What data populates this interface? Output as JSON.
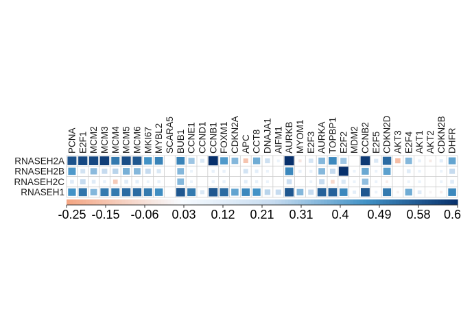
{
  "chart_data": {
    "type": "heatmap",
    "title": "",
    "xlabel": "",
    "ylabel": "",
    "columns": [
      "PCNA",
      "E2F1",
      "MCM2",
      "MCM3",
      "MCM4",
      "MCM5",
      "MCM6",
      "MKI67",
      "MYBL2",
      "SCARA5",
      "BUB1",
      "CCNE1",
      "CCND1",
      "CCNB1",
      "FOXM1",
      "CDKN2A",
      "APC",
      "CCT8",
      "DNAJA1",
      "AIFM1",
      "AURKB",
      "MYOM1",
      "E2F3",
      "AURKA",
      "TOPBP1",
      "E2F2",
      "MDM2",
      "CCNB2",
      "E2F5",
      "CDKN2D",
      "AKT3",
      "E2F4",
      "AKT1",
      "AKT2",
      "CDKN2B",
      "DHFR"
    ],
    "rows": [
      "RNASEH2A",
      "RNASEH2B",
      "RNASEH2C",
      "RNASEH1"
    ],
    "values": [
      [
        0.53,
        0.55,
        0.55,
        0.57,
        0.45,
        0.54,
        0.52,
        0.4,
        0.43,
        0.0,
        0.43,
        0.26,
        0.12,
        0.6,
        0.38,
        0.3,
        -0.16,
        0.33,
        0.17,
        0.05,
        0.6,
        -0.06,
        0.14,
        0.3,
        0.42,
        0.26,
        0.0,
        0.58,
        0.12,
        0.48,
        -0.18,
        0.3,
        0.06,
        -0.05,
        0.08,
        0.35
      ],
      [
        0.38,
        0.15,
        0.29,
        0.2,
        0.22,
        0.32,
        0.3,
        0.2,
        0.12,
        0.0,
        0.3,
        0.05,
        0.0,
        0.06,
        0.06,
        0.0,
        0.15,
        0.08,
        0.05,
        0.0,
        0.42,
        0.06,
        0.06,
        0.3,
        0.2,
        0.6,
        0.05,
        0.34,
        0.05,
        0.36,
        0.0,
        0.1,
        0.05,
        0.0,
        0.05,
        0.2
      ],
      [
        0.1,
        0.2,
        0.1,
        0.06,
        -0.14,
        0.1,
        0.08,
        0.05,
        0.06,
        0.0,
        0.3,
        0.05,
        0.0,
        0.06,
        0.06,
        0.0,
        0.08,
        0.06,
        0.05,
        0.0,
        0.18,
        0.0,
        0.05,
        0.2,
        -0.1,
        0.12,
        0.05,
        0.28,
        0.05,
        -0.04,
        0.0,
        0.05,
        0.05,
        0.0,
        0.05,
        0.1
      ],
      [
        0.4,
        0.46,
        0.3,
        0.45,
        0.45,
        0.48,
        0.48,
        0.45,
        0.41,
        0.0,
        0.52,
        0.45,
        0.12,
        0.52,
        0.48,
        0.35,
        0.42,
        0.4,
        0.22,
        0.2,
        0.52,
        0.3,
        0.2,
        0.5,
        0.5,
        0.42,
        0.08,
        0.52,
        0.05,
        0.45,
        -0.03,
        0.33,
        0.1,
        -0.02,
        -0.04,
        0.42
      ]
    ],
    "color_scale": {
      "min": -0.25,
      "max": 0.6,
      "stops": [
        {
          "value": -0.25,
          "color": "#f4a582"
        },
        {
          "value": 0.0,
          "color": "#f7fbff"
        },
        {
          "value": 0.2,
          "color": "#c6dbef"
        },
        {
          "value": 0.4,
          "color": "#4292c6"
        },
        {
          "value": 0.6,
          "color": "#08306b"
        }
      ],
      "tick_labels": [
        "-0.25",
        "-0.15",
        "-0.06",
        "0.03",
        "0.12",
        "0.21",
        "0.31",
        "0.4",
        "0.49",
        "0.58",
        "0.6"
      ]
    },
    "grid": true,
    "legend": "bottom"
  }
}
